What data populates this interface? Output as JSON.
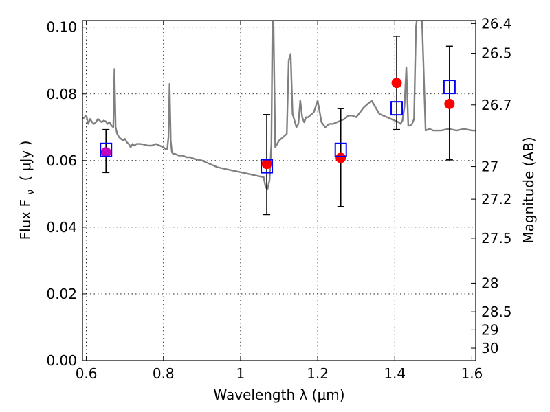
{
  "chart_data": {
    "type": "scatter",
    "xlabel": "Wavelength  λ (μm)",
    "ylabel_left": "Flux  F",
    "ylabel_left_sub": "ν",
    "ylabel_left_unit": "( μJy )",
    "ylabel_right": "Magnitude (AB)",
    "xlim": [
      0.59,
      1.61
    ],
    "ylim": [
      0.0,
      0.102
    ],
    "x_ticks": [
      0.6,
      0.8,
      1.0,
      1.2,
      1.4,
      1.6
    ],
    "x_tick_labels": [
      "0.6",
      "0.8",
      "1",
      "1.2",
      "1.4",
      "1.6"
    ],
    "y_ticks": [
      0.0,
      0.02,
      0.04,
      0.06,
      0.08,
      0.1
    ],
    "y_tick_labels": [
      "0.00",
      "0.02",
      "0.04",
      "0.06",
      "0.08",
      "0.10"
    ],
    "right_ticks": [
      {
        "label": "26.4",
        "flux": 0.1011
      },
      {
        "label": "26.5",
        "flux": 0.0922
      },
      {
        "label": "26.7",
        "flux": 0.0767
      },
      {
        "label": "27",
        "flux": 0.0582
      },
      {
        "label": "27.2",
        "flux": 0.0484
      },
      {
        "label": "27.5",
        "flux": 0.0367
      },
      {
        "label": "28",
        "flux": 0.0232
      },
      {
        "label": "28.5",
        "flux": 0.0146
      },
      {
        "label": "29",
        "flux": 0.0092
      },
      {
        "label": "30",
        "flux": 0.0037
      }
    ],
    "grid": true,
    "spectrum": {
      "color": "#808080",
      "x": [
        0.59,
        0.6,
        0.605,
        0.61,
        0.615,
        0.62,
        0.625,
        0.63,
        0.635,
        0.64,
        0.645,
        0.65,
        0.655,
        0.66,
        0.665,
        0.67,
        0.673,
        0.676,
        0.68,
        0.685,
        0.69,
        0.695,
        0.7,
        0.705,
        0.71,
        0.715,
        0.72,
        0.725,
        0.73,
        0.74,
        0.75,
        0.76,
        0.77,
        0.78,
        0.79,
        0.8,
        0.805,
        0.81,
        0.813,
        0.816,
        0.819,
        0.822,
        0.825,
        0.83,
        0.84,
        0.85,
        0.86,
        0.87,
        0.88,
        0.9,
        0.92,
        0.94,
        0.96,
        0.98,
        1.0,
        1.02,
        1.04,
        1.06,
        1.065,
        1.07,
        1.075,
        1.08,
        1.083,
        1.085,
        1.09,
        1.1,
        1.11,
        1.12,
        1.125,
        1.13,
        1.135,
        1.14,
        1.145,
        1.15,
        1.155,
        1.16,
        1.165,
        1.17,
        1.175,
        1.18,
        1.19,
        1.2,
        1.21,
        1.22,
        1.23,
        1.24,
        1.25,
        1.26,
        1.27,
        1.28,
        1.29,
        1.3,
        1.31,
        1.32,
        1.33,
        1.34,
        1.36,
        1.38,
        1.4,
        1.41,
        1.415,
        1.42,
        1.425,
        1.43,
        1.435,
        1.44,
        1.445,
        1.45,
        1.455,
        1.46,
        1.465,
        1.47,
        1.48,
        1.49,
        1.5,
        1.52,
        1.54,
        1.56,
        1.58,
        1.6,
        1.61
      ],
      "y": [
        0.0725,
        0.0735,
        0.071,
        0.0725,
        0.0715,
        0.071,
        0.0715,
        0.0725,
        0.072,
        0.0715,
        0.072,
        0.0718,
        0.071,
        0.0715,
        0.0705,
        0.07,
        0.0875,
        0.07,
        0.068,
        0.067,
        0.0665,
        0.066,
        0.0665,
        0.0655,
        0.065,
        0.064,
        0.065,
        0.0645,
        0.065,
        0.065,
        0.0648,
        0.0645,
        0.0645,
        0.065,
        0.0645,
        0.064,
        0.0635,
        0.0635,
        0.067,
        0.083,
        0.066,
        0.0625,
        0.062,
        0.062,
        0.0615,
        0.0615,
        0.061,
        0.061,
        0.0605,
        0.06,
        0.059,
        0.058,
        0.0575,
        0.057,
        0.0565,
        0.056,
        0.0555,
        0.055,
        0.052,
        0.0515,
        0.054,
        0.065,
        0.105,
        0.105,
        0.064,
        0.066,
        0.067,
        0.068,
        0.09,
        0.092,
        0.074,
        0.072,
        0.07,
        0.071,
        0.078,
        0.073,
        0.0715,
        0.073,
        0.073,
        0.0735,
        0.0745,
        0.078,
        0.0715,
        0.07,
        0.071,
        0.071,
        0.0715,
        0.072,
        0.0725,
        0.0735,
        0.0735,
        0.073,
        0.0745,
        0.076,
        0.077,
        0.078,
        0.074,
        0.073,
        0.072,
        0.0715,
        0.071,
        0.072,
        0.076,
        0.088,
        0.0705,
        0.0705,
        0.071,
        0.0725,
        0.1,
        0.105,
        0.105,
        0.105,
        0.069,
        0.0695,
        0.069,
        0.069,
        0.0695,
        0.069,
        0.0695,
        0.069,
        0.069
      ]
    },
    "series": [
      {
        "marker": "circle",
        "color": "#ff0000",
        "x": [
          1.068,
          1.26,
          1.405,
          1.542
        ],
        "values": [
          0.059,
          0.0608,
          0.0833,
          0.077
        ],
        "errors": [
          [
            0.0438,
            0.0738
          ],
          [
            0.0462,
            0.0756
          ],
          [
            0.0693,
            0.0973
          ],
          [
            0.0602,
            0.0943
          ]
        ]
      },
      {
        "marker": "circle",
        "color": "#bf00bf",
        "x": [
          0.651
        ],
        "values": [
          0.0625
        ],
        "errors": [
          [
            0.0564,
            0.0693
          ]
        ]
      },
      {
        "marker": "open-square",
        "color": "#0000ff",
        "x": [
          0.651,
          1.068,
          1.26,
          1.405,
          1.542
        ],
        "values": [
          0.0632,
          0.0583,
          0.0632,
          0.0757,
          0.0821
        ]
      }
    ]
  }
}
